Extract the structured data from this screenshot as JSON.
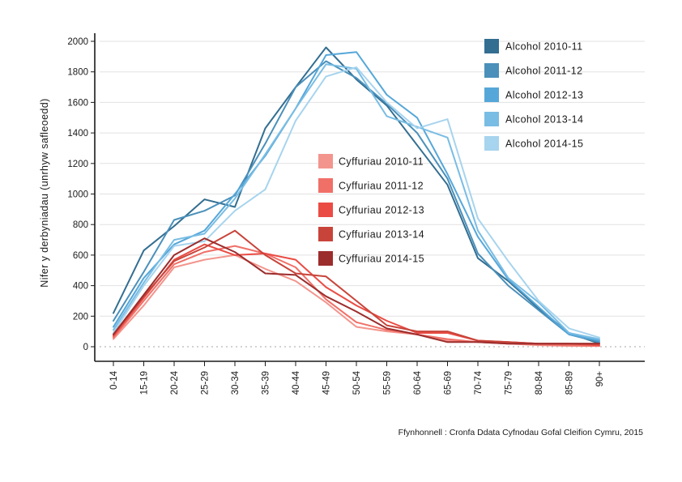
{
  "chart_data": {
    "type": "line",
    "title": "",
    "xlabel": "",
    "ylabel": "Nifer y derbyniadau (unrhyw safleoedd)",
    "ylim": [
      0,
      2000
    ],
    "yticks": [
      0,
      200,
      400,
      600,
      800,
      1000,
      1200,
      1400,
      1600,
      1800,
      2000
    ],
    "grid": "horizontal",
    "categories": [
      "0-14",
      "15-19",
      "20-24",
      "25-29",
      "30-34",
      "35-39",
      "40-44",
      "45-49",
      "50-54",
      "55-59",
      "60-64",
      "65-69",
      "70-74",
      "75-79",
      "80-84",
      "85-89",
      "90+"
    ],
    "legend_groups": [
      {
        "placement": "top-right",
        "series_indices": [
          0,
          1,
          2,
          3,
          4
        ]
      },
      {
        "placement": "center",
        "series_indices": [
          5,
          6,
          7,
          8,
          9
        ]
      }
    ],
    "series": [
      {
        "name": "Alcohol 2010-11",
        "color": "#336e91",
        "values": [
          220,
          630,
          790,
          965,
          915,
          1430,
          1700,
          1960,
          1750,
          1580,
          1320,
          1060,
          580,
          430,
          250,
          90,
          20
        ]
      },
      {
        "name": "Alcohol 2011-12",
        "color": "#4a90ba",
        "values": [
          170,
          490,
          830,
          890,
          990,
          1330,
          1700,
          1870,
          1760,
          1590,
          1400,
          1100,
          610,
          400,
          240,
          80,
          30
        ]
      },
      {
        "name": "Alcohol 2012-13",
        "color": "#56a7d9",
        "values": [
          130,
          450,
          670,
          760,
          1000,
          1250,
          1560,
          1910,
          1930,
          1650,
          1500,
          1130,
          720,
          440,
          260,
          80,
          40
        ]
      },
      {
        "name": "Alcohol 2013-14",
        "color": "#79bde4",
        "values": [
          110,
          420,
          700,
          740,
          970,
          1260,
          1560,
          1850,
          1820,
          1510,
          1440,
          1370,
          760,
          450,
          290,
          90,
          50
        ]
      },
      {
        "name": "Alcohol 2014-15",
        "color": "#a7d4ee",
        "values": [
          90,
          400,
          660,
          690,
          890,
          1030,
          1480,
          1770,
          1830,
          1600,
          1430,
          1490,
          840,
          560,
          300,
          120,
          60
        ]
      },
      {
        "name": "Cyffuriau 2010-11",
        "color": "#f3958d",
        "values": [
          50,
          270,
          520,
          570,
          600,
          510,
          430,
          290,
          130,
          100,
          80,
          40,
          30,
          20,
          10,
          5,
          5
        ]
      },
      {
        "name": "Cyffuriau 2011-12",
        "color": "#f07068",
        "values": [
          60,
          300,
          540,
          620,
          660,
          610,
          520,
          310,
          160,
          110,
          80,
          50,
          30,
          20,
          15,
          10,
          5
        ]
      },
      {
        "name": "Cyffuriau 2012-13",
        "color": "#ea4c44",
        "values": [
          70,
          320,
          570,
          670,
          600,
          610,
          570,
          390,
          270,
          170,
          90,
          90,
          40,
          30,
          20,
          20,
          10
        ]
      },
      {
        "name": "Cyffuriau 2013-14",
        "color": "#c8443a",
        "values": [
          80,
          330,
          560,
          650,
          760,
          600,
          480,
          460,
          300,
          140,
          100,
          100,
          40,
          30,
          20,
          20,
          20
        ]
      },
      {
        "name": "Cyffuriau 2014-15",
        "color": "#9c2d2d",
        "values": [
          80,
          340,
          600,
          710,
          620,
          480,
          470,
          330,
          230,
          120,
          80,
          30,
          30,
          20,
          20,
          20,
          20
        ]
      }
    ]
  },
  "source_note": "Ffynhonnell : Cronfa Ddata Cyfnodau Gofal Cleifion Cymru, 2015"
}
